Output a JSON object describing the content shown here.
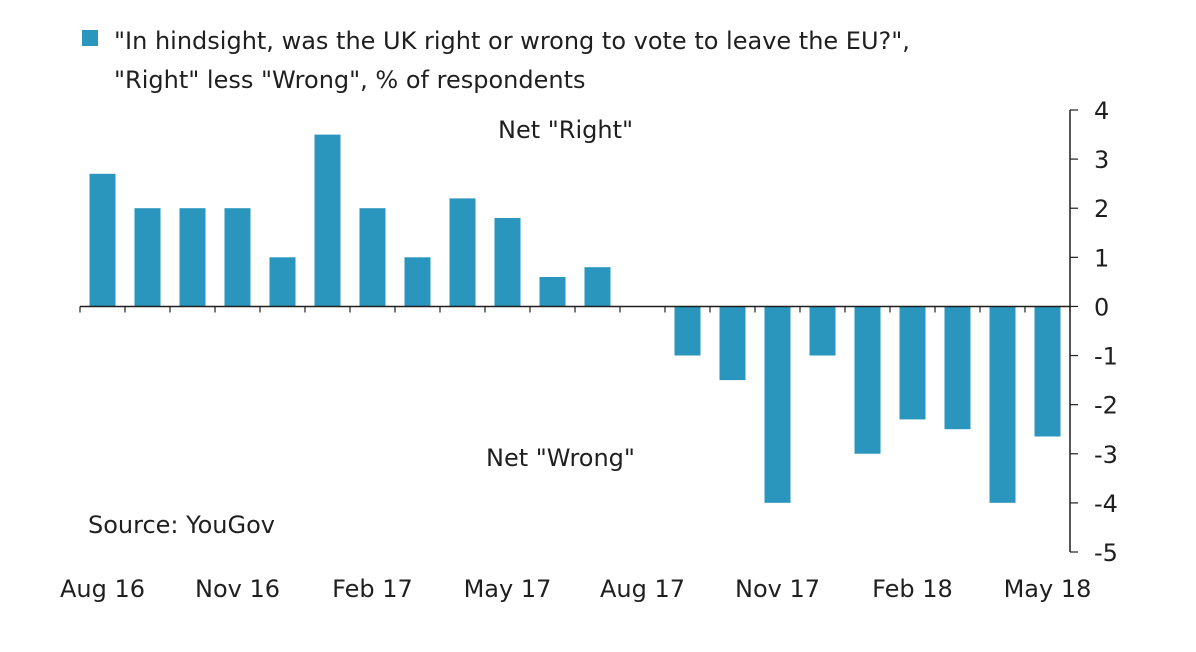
{
  "chart_data": {
    "type": "bar",
    "legend": {
      "line1": "\"In hindsight, was the UK right or wrong to vote to leave the EU?\",",
      "line2": "\"Right\" less \"Wrong\", % of respondents",
      "color": "#2a95bd"
    },
    "annotations": {
      "net_right": "Net \"Right\"",
      "net_wrong": "Net \"Wrong\"",
      "source": "Source: YouGov"
    },
    "x_tick_labels": [
      "Aug 16",
      "Nov 16",
      "Feb 17",
      "May 17",
      "Aug 17",
      "Nov 17",
      "Feb 18",
      "May 18"
    ],
    "y_tick_labels": [
      "4",
      "3",
      "2",
      "1",
      "0",
      "-1",
      "-2",
      "-3",
      "-4",
      "-5"
    ],
    "ylim": [
      -5,
      4
    ],
    "y_axis_position": "right",
    "series": [
      {
        "values": [
          2.7,
          2.0,
          2.0,
          2.0,
          1.0,
          3.5,
          2.0,
          1.0,
          2.2,
          1.8,
          0.6,
          0.8,
          null,
          -1.0,
          -1.5,
          -4.0,
          -1.0,
          -3.0,
          -2.3,
          -2.5,
          -4.0,
          -2.65
        ]
      }
    ]
  }
}
